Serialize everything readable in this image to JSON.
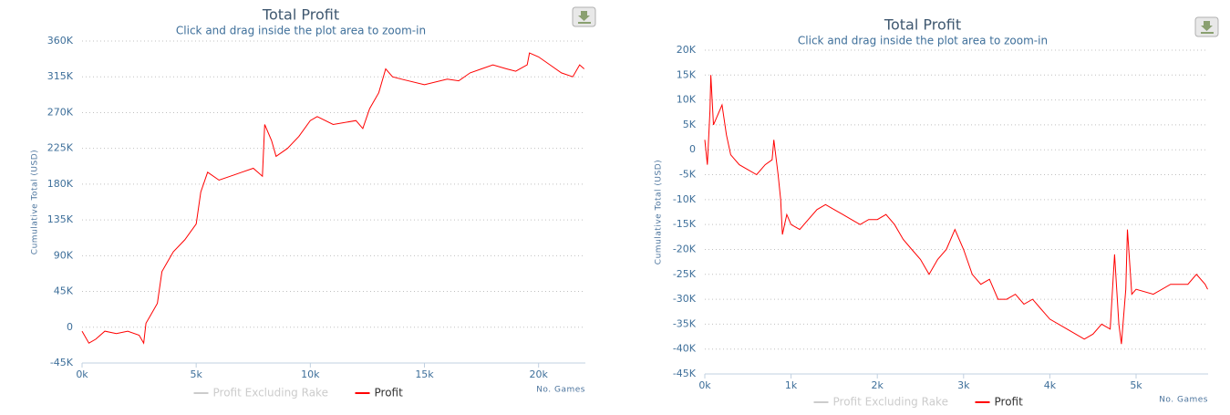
{
  "chart_data": [
    {
      "type": "line",
      "title": "Total Profit",
      "subtitle": "Click and drag inside the plot area to zoom-in",
      "y_label": "Cumulative Total (USD)",
      "x_label": "No. Games",
      "grid": true,
      "x": [
        0,
        300,
        600,
        1000,
        1500,
        2000,
        2500,
        2700,
        2800,
        3000,
        3300,
        3500,
        3700,
        4000,
        4500,
        5000,
        5200,
        5500,
        6000,
        6500,
        7000,
        7500,
        7900,
        8000,
        8300,
        8500,
        9000,
        9500,
        10000,
        10300,
        11000,
        12000,
        12300,
        12600,
        13000,
        13300,
        13600,
        14000,
        15000,
        16000,
        16500,
        17000,
        17500,
        18000,
        18600,
        19000,
        19500,
        19600,
        20000,
        20500,
        21000,
        21500,
        21800,
        22000
      ],
      "series": [
        {
          "name": "Profit Excluding Rake",
          "color": "#cccccc",
          "visible": false,
          "values": [
            null,
            null,
            null,
            null,
            null,
            null,
            null,
            null,
            null,
            null,
            null,
            null,
            null,
            null,
            null,
            null,
            null,
            null,
            null,
            null,
            null,
            null,
            null,
            null,
            null,
            null,
            null,
            null,
            null,
            null,
            null,
            null,
            null,
            null,
            null,
            null,
            null,
            null,
            null,
            null,
            null,
            null,
            null,
            null,
            null,
            null,
            null,
            null,
            null,
            null,
            null,
            null,
            null,
            null
          ]
        },
        {
          "name": "Profit",
          "color": "#ff0000",
          "visible": true,
          "values": [
            -5000,
            -20000,
            -15000,
            -5000,
            -8000,
            -5000,
            -10000,
            -20000,
            5000,
            15000,
            30000,
            70000,
            80000,
            95000,
            110000,
            130000,
            170000,
            195000,
            185000,
            190000,
            195000,
            200000,
            190000,
            255000,
            235000,
            215000,
            225000,
            240000,
            260000,
            265000,
            255000,
            260000,
            250000,
            275000,
            295000,
            325000,
            315000,
            312000,
            305000,
            312000,
            310000,
            320000,
            325000,
            330000,
            325000,
            322000,
            330000,
            345000,
            340000,
            330000,
            320000,
            315000,
            330000,
            325000
          ]
        }
      ],
      "xlim": [
        0,
        22050
      ],
      "xticks": [
        {
          "value": 0,
          "label": "0k"
        },
        {
          "value": 5000,
          "label": "5k"
        },
        {
          "value": 10000,
          "label": "10k"
        },
        {
          "value": 15000,
          "label": "15k"
        },
        {
          "value": 20000,
          "label": "20k"
        }
      ],
      "ylim": [
        -45000,
        360000
      ],
      "yticks": [
        {
          "value": -45000,
          "label": "-45K"
        },
        0,
        {
          "value": 45000,
          "label": "45K"
        },
        {
          "value": 90000,
          "label": "90K"
        },
        {
          "value": 135000,
          "label": "135K"
        },
        {
          "value": 180000,
          "label": "180K"
        },
        {
          "value": 225000,
          "label": "225K"
        },
        {
          "value": 270000,
          "label": "270K"
        },
        {
          "value": 315000,
          "label": "315K"
        },
        {
          "value": 360000,
          "label": "360K"
        }
      ]
    },
    {
      "type": "line",
      "title": "Total Profit",
      "subtitle": "Click and drag inside the plot area to zoom-in",
      "y_label": "Cumulative Total (USD)",
      "x_label": "No. Games",
      "grid": true,
      "x": [
        0,
        30,
        60,
        70,
        100,
        150,
        200,
        250,
        300,
        400,
        500,
        600,
        700,
        780,
        800,
        850,
        880,
        900,
        950,
        1000,
        1100,
        1200,
        1300,
        1400,
        1500,
        1600,
        1700,
        1800,
        1900,
        2000,
        2100,
        2200,
        2300,
        2400,
        2500,
        2600,
        2700,
        2800,
        2900,
        3000,
        3100,
        3200,
        3300,
        3400,
        3500,
        3600,
        3700,
        3800,
        3900,
        4000,
        4200,
        4400,
        4500,
        4600,
        4700,
        4750,
        4800,
        4830,
        4880,
        4900,
        4950,
        5000,
        5200,
        5400,
        5600,
        5700,
        5800,
        5830
      ],
      "series": [
        {
          "name": "Profit Excluding Rake",
          "color": "#cccccc",
          "visible": false,
          "values": [
            null,
            null,
            null,
            null,
            null,
            null,
            null,
            null,
            null,
            null,
            null,
            null,
            null,
            null,
            null,
            null,
            null,
            null,
            null,
            null,
            null,
            null,
            null,
            null,
            null,
            null,
            null,
            null,
            null,
            null,
            null,
            null,
            null,
            null,
            null,
            null,
            null,
            null,
            null,
            null,
            null,
            null,
            null,
            null,
            null,
            null,
            null,
            null,
            null,
            null,
            null,
            null,
            null,
            null,
            null,
            null,
            null,
            null,
            null,
            null,
            null,
            null,
            null,
            null,
            null,
            null,
            null,
            null
          ]
        },
        {
          "name": "Profit",
          "color": "#ff0000",
          "visible": true,
          "values": [
            2000,
            -3000,
            8000,
            15000,
            5000,
            7000,
            9000,
            3000,
            -1000,
            -3000,
            -4000,
            -5000,
            -3000,
            -2000,
            2000,
            -5000,
            -10000,
            -17000,
            -13000,
            -15000,
            -16000,
            -14000,
            -12000,
            -11000,
            -12000,
            -13000,
            -14000,
            -15000,
            -14000,
            -14000,
            -13000,
            -15000,
            -18000,
            -20000,
            -22000,
            -25000,
            -22000,
            -20000,
            -16000,
            -20000,
            -25000,
            -27000,
            -26000,
            -30000,
            -30000,
            -29000,
            -31000,
            -30000,
            -32000,
            -34000,
            -36000,
            -38000,
            -37000,
            -35000,
            -36000,
            -21000,
            -35000,
            -39000,
            -28000,
            -16000,
            -29000,
            -28000,
            -29000,
            -27000,
            -27000,
            -25000,
            -27000,
            -28000
          ]
        }
      ],
      "xlim": [
        0,
        5835
      ],
      "xticks": [
        {
          "value": 0,
          "label": "0k"
        },
        {
          "value": 1000,
          "label": "1k"
        },
        {
          "value": 2000,
          "label": "2k"
        },
        {
          "value": 3000,
          "label": "3k"
        },
        {
          "value": 4000,
          "label": "4k"
        },
        {
          "value": 5000,
          "label": "5k"
        }
      ],
      "ylim": [
        -45000,
        20000
      ],
      "yticks": [
        {
          "value": -45000,
          "label": "-45K"
        },
        {
          "value": -40000,
          "label": "-40K"
        },
        {
          "value": -35000,
          "label": "-35K"
        },
        {
          "value": -30000,
          "label": "-30K"
        },
        {
          "value": -25000,
          "label": "-25K"
        },
        {
          "value": -20000,
          "label": "-20K"
        },
        {
          "value": -15000,
          "label": "-15K"
        },
        {
          "value": -10000,
          "label": "-10K"
        },
        {
          "value": -5000,
          "label": "-5K"
        },
        0,
        {
          "value": 5000,
          "label": "5K"
        },
        {
          "value": 10000,
          "label": "10K"
        },
        {
          "value": 15000,
          "label": "15K"
        },
        {
          "value": 20000,
          "label": "20K"
        }
      ]
    }
  ]
}
